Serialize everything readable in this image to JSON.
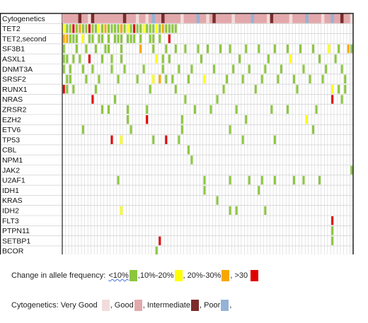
{
  "chart_data": {
    "type": "heatmap",
    "title": "",
    "xlabel": "",
    "ylabel": "",
    "num_patients": 91,
    "rows": [
      "Cytogenetics",
      "TET2",
      "TET2,second",
      "SF3B1",
      "ASXL1",
      "DNMT3A",
      "SRSF2",
      "RUNX1",
      "NRAS",
      "ZRSR2",
      "EZH2",
      "ETV6",
      "TP53",
      "CBL",
      "NPM1",
      "JAK2",
      "U2AF1",
      "IDH1",
      "KRAS",
      "IDH2",
      "FLT3",
      "PTPN11",
      "SETBP1",
      "BCOR"
    ],
    "af_colors": {
      "1": "#8cc63f",
      "2": "#ffff00",
      "3": "#f7a800",
      "4": "#e00000"
    },
    "cyto_colors": {
      "1": "#f2dcdb",
      "2": "#e2a8ab",
      "3": "#7b2c2c",
      "4": "#94b3d7"
    },
    "cytogenetics_values": [
      2,
      2,
      2,
      2,
      2,
      3,
      2,
      2,
      1,
      3,
      2,
      2,
      2,
      2,
      2,
      2,
      2,
      2,
      2,
      3,
      2,
      2,
      2,
      1,
      2,
      2,
      1,
      2,
      4,
      2,
      2,
      3,
      2,
      2,
      2,
      2,
      2,
      1,
      2,
      2,
      2,
      2,
      4,
      2,
      2,
      1,
      2,
      3,
      2,
      2,
      2,
      2,
      2,
      1,
      2,
      2,
      2,
      2,
      2,
      4,
      2,
      2,
      2,
      2,
      1,
      3,
      2,
      2,
      2,
      2,
      2,
      1,
      2,
      2,
      2,
      2,
      4,
      2,
      2,
      2,
      2,
      1,
      2,
      2,
      4,
      2,
      2,
      3,
      2,
      2,
      1
    ],
    "mutations": {
      "TET2": [
        [
          0,
          2
        ],
        [
          1,
          1
        ],
        [
          2,
          1
        ],
        [
          3,
          4
        ],
        [
          4,
          1
        ],
        [
          5,
          3
        ],
        [
          6,
          1
        ],
        [
          7,
          1
        ],
        [
          8,
          4
        ],
        [
          9,
          1
        ],
        [
          10,
          1
        ],
        [
          11,
          2
        ],
        [
          12,
          1
        ],
        [
          13,
          3
        ],
        [
          14,
          1
        ],
        [
          15,
          1
        ],
        [
          16,
          1
        ],
        [
          17,
          1
        ],
        [
          18,
          3
        ],
        [
          19,
          1
        ],
        [
          20,
          2
        ],
        [
          21,
          1
        ],
        [
          22,
          4
        ],
        [
          23,
          1
        ],
        [
          24,
          1
        ],
        [
          25,
          2
        ],
        [
          26,
          1
        ],
        [
          27,
          1
        ],
        [
          28,
          1
        ],
        [
          29,
          2
        ],
        [
          30,
          1
        ],
        [
          31,
          3
        ],
        [
          32,
          1
        ],
        [
          33,
          1
        ],
        [
          34,
          1
        ],
        [
          35,
          1
        ]
      ],
      "TET2,second": [
        [
          0,
          3
        ],
        [
          1,
          3
        ],
        [
          2,
          1
        ],
        [
          3,
          1
        ],
        [
          4,
          1
        ],
        [
          6,
          2
        ],
        [
          8,
          1
        ],
        [
          9,
          1
        ],
        [
          11,
          1
        ],
        [
          12,
          1
        ],
        [
          14,
          1
        ],
        [
          16,
          1
        ],
        [
          17,
          1
        ],
        [
          18,
          1
        ],
        [
          20,
          1
        ],
        [
          21,
          1
        ],
        [
          22,
          1
        ],
        [
          24,
          1
        ],
        [
          27,
          1
        ],
        [
          28,
          1
        ],
        [
          30,
          1
        ],
        [
          33,
          4
        ]
      ],
      "SF3B1": [
        [
          0,
          1
        ],
        [
          4,
          1
        ],
        [
          7,
          1
        ],
        [
          10,
          1
        ],
        [
          13,
          1
        ],
        [
          14,
          1
        ],
        [
          18,
          1
        ],
        [
          24,
          3
        ],
        [
          28,
          1
        ],
        [
          32,
          1
        ],
        [
          35,
          1
        ],
        [
          38,
          1
        ],
        [
          42,
          1
        ],
        [
          45,
          1
        ],
        [
          49,
          1
        ],
        [
          52,
          1
        ],
        [
          57,
          1
        ],
        [
          61,
          1
        ],
        [
          66,
          1
        ],
        [
          70,
          1
        ],
        [
          74,
          1
        ],
        [
          78,
          1
        ],
        [
          83,
          2
        ],
        [
          86,
          1
        ],
        [
          89,
          3
        ],
        [
          90,
          1
        ]
      ],
      "ASXL1": [
        [
          0,
          1
        ],
        [
          1,
          1
        ],
        [
          3,
          1
        ],
        [
          5,
          1
        ],
        [
          8,
          4
        ],
        [
          12,
          1
        ],
        [
          15,
          1
        ],
        [
          18,
          1
        ],
        [
          29,
          2
        ],
        [
          31,
          1
        ],
        [
          33,
          1
        ],
        [
          43,
          1
        ],
        [
          55,
          1
        ],
        [
          64,
          1
        ],
        [
          71,
          2
        ],
        [
          80,
          1
        ],
        [
          85,
          1
        ]
      ],
      "DNMT3A": [
        [
          0,
          1
        ],
        [
          2,
          1
        ],
        [
          6,
          1
        ],
        [
          9,
          1
        ],
        [
          15,
          1
        ],
        [
          19,
          1
        ],
        [
          25,
          1
        ],
        [
          31,
          1
        ],
        [
          36,
          1
        ],
        [
          40,
          1
        ],
        [
          47,
          1
        ],
        [
          53,
          1
        ],
        [
          58,
          1
        ],
        [
          63,
          1
        ],
        [
          68,
          1
        ],
        [
          75,
          1
        ],
        [
          82,
          1
        ],
        [
          87,
          1
        ]
      ],
      "SRSF2": [
        [
          1,
          1
        ],
        [
          2,
          1
        ],
        [
          7,
          1
        ],
        [
          11,
          1
        ],
        [
          17,
          1
        ],
        [
          23,
          1
        ],
        [
          28,
          2
        ],
        [
          30,
          3
        ],
        [
          32,
          1
        ],
        [
          34,
          1
        ],
        [
          39,
          1
        ],
        [
          44,
          2
        ],
        [
          51,
          1
        ],
        [
          56,
          1
        ],
        [
          62,
          1
        ],
        [
          67,
          1
        ],
        [
          72,
          1
        ],
        [
          77,
          1
        ],
        [
          81,
          1
        ],
        [
          88,
          1
        ]
      ],
      "RUNX1": [
        [
          0,
          4
        ],
        [
          1,
          1
        ],
        [
          3,
          1
        ],
        [
          10,
          1
        ],
        [
          27,
          1
        ],
        [
          35,
          1
        ],
        [
          50,
          1
        ],
        [
          60,
          1
        ],
        [
          73,
          1
        ],
        [
          84,
          2
        ],
        [
          86,
          1
        ],
        [
          88,
          1
        ]
      ],
      "NRAS": [
        [
          9,
          4
        ],
        [
          16,
          1
        ],
        [
          38,
          1
        ],
        [
          48,
          1
        ],
        [
          84,
          4
        ],
        [
          87,
          1
        ]
      ],
      "ZRSR2": [
        [
          12,
          1
        ],
        [
          14,
          1
        ],
        [
          20,
          1
        ],
        [
          26,
          1
        ],
        [
          41,
          1
        ],
        [
          46,
          1
        ],
        [
          54,
          1
        ],
        [
          65,
          1
        ],
        [
          70,
          1
        ],
        [
          79,
          1
        ]
      ],
      "EZH2": [
        [
          20,
          1
        ],
        [
          26,
          4
        ],
        [
          37,
          1
        ],
        [
          57,
          1
        ],
        [
          76,
          2
        ]
      ],
      "ETV6": [
        [
          6,
          1
        ],
        [
          21,
          1
        ],
        [
          37,
          1
        ],
        [
          52,
          1
        ],
        [
          78,
          1
        ]
      ],
      "TP53": [
        [
          15,
          4
        ],
        [
          18,
          2
        ],
        [
          28,
          1
        ],
        [
          32,
          4
        ],
        [
          36,
          1
        ],
        [
          56,
          1
        ],
        [
          66,
          1
        ]
      ],
      "CBL": [
        [
          39,
          1
        ]
      ],
      "NPM1": [
        [
          40,
          1
        ]
      ],
      "JAK2": [
        [
          90,
          1
        ]
      ],
      "U2AF1": [
        [
          17,
          1
        ],
        [
          44,
          1
        ],
        [
          52,
          1
        ],
        [
          58,
          1
        ],
        [
          62,
          1
        ],
        [
          66,
          1
        ],
        [
          72,
          1
        ],
        [
          75,
          1
        ],
        [
          80,
          1
        ]
      ],
      "IDH1": [
        [
          44,
          1
        ],
        [
          61,
          1
        ]
      ],
      "KRAS": [
        [
          48,
          1
        ]
      ],
      "IDH2": [
        [
          18,
          2
        ],
        [
          52,
          1
        ],
        [
          54,
          1
        ],
        [
          63,
          1
        ]
      ],
      "FLT3": [
        [
          84,
          4
        ]
      ],
      "PTPN11": [
        [
          84,
          1
        ]
      ],
      "SETBP1": [
        [
          30,
          4
        ],
        [
          84,
          1
        ]
      ],
      "BCOR": [
        [
          29,
          1
        ]
      ]
    },
    "legend_af": {
      "label": "Change in allele frequency:",
      "items": [
        "<10%",
        ",10%-20%",
        ", 20%-30%",
        ", >30"
      ]
    },
    "legend_cyto": {
      "label": "Cytogenetics: Very Good",
      "items": [
        "",
        ", Good",
        ", Intermediate",
        ", Poor",
        ","
      ]
    }
  }
}
